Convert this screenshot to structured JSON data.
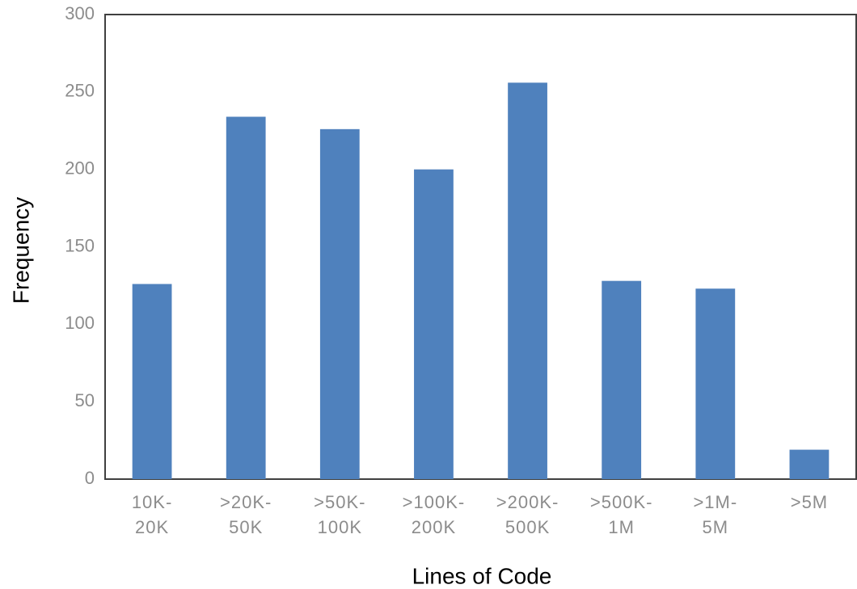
{
  "chart_data": {
    "type": "bar",
    "x_label": "Lines of Code",
    "y_label": "Frequency",
    "categories": [
      "10K-20K",
      ">20K-50K",
      ">50K-100K",
      ">100K-200K",
      ">200K-500K",
      ">500K-1M",
      ">1M-5M",
      ">5M"
    ],
    "values": [
      126,
      234,
      226,
      200,
      256,
      128,
      123,
      19
    ],
    "color": "#4f81bd",
    "ylim": [
      0,
      300
    ],
    "yticks": [
      0,
      50,
      100,
      150,
      200,
      250,
      300
    ],
    "grid": false
  }
}
